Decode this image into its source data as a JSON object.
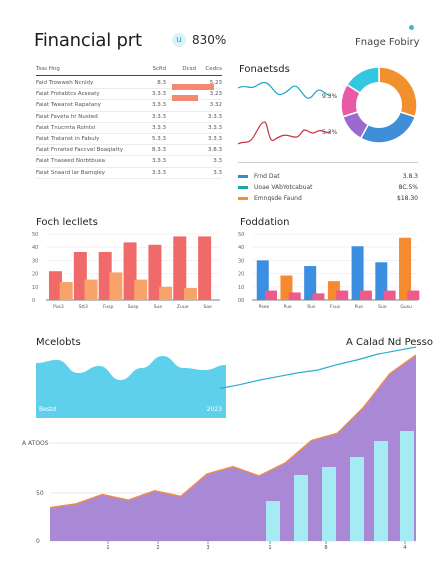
{
  "header": {
    "title": "Financial prt",
    "badge_icon": "u",
    "badge_value": "830%",
    "top_right": "Fnage Fobiry"
  },
  "table": {
    "headers": [
      "Tsss Hng",
      "Scfid",
      "Dcsd",
      "Cedcs"
    ],
    "rows": [
      {
        "name": "Faid Trowweh  Ncnldy",
        "v1": "8.3",
        "bar": 0.95,
        "v3": "5.23"
      },
      {
        "name": "Faiat Frotabtcs Acseaty",
        "v1": "3.3.3",
        "bar": 0.6,
        "v3": "3.23"
      },
      {
        "name": "Faiat Tweanst  Rapatany",
        "v1": "3.3.3",
        "bar": 0,
        "v3": "3.32"
      },
      {
        "name": "Faiat Faveta hr  Nusted",
        "v1": "3.3.3",
        "bar": 0,
        "v3": "3.3.3"
      },
      {
        "name": "Faiat Tnucmta Rolntsi",
        "v1": "3.3.3",
        "bar": 0,
        "v3": "3.3.3"
      },
      {
        "name": "Faiat Tratanst in Fabuly",
        "v1": "5.3.3",
        "bar": 0,
        "v3": "3.3.3"
      },
      {
        "name": "Faiat Fnnetsd  Faccvel  Boaqiatty",
        "v1": "8.3.3",
        "bar": 0,
        "v3": "3.8.3"
      },
      {
        "name": "Faiat Tnaseed  Norbtbuea",
        "v1": "3.3.3",
        "bar": 0,
        "v3": "3.3"
      },
      {
        "name": "Faiat Snaard lar  Bamqley",
        "v1": "3.3.3",
        "bar": 0,
        "v3": "3.3"
      }
    ]
  },
  "right_top": {
    "title": "Fonaetsds",
    "line1_label": "9.3%",
    "line2_label": "5.3%"
  },
  "legend": [
    {
      "name": "Frnd Dat",
      "value": "3.8.3",
      "color": "#2d8fd0"
    },
    {
      "name": "Uoae  VAbYotcabuat",
      "value": "8C.5%",
      "color": "#1aa7a8"
    },
    {
      "name": "Emnqsde  Faund",
      "value": "$18.30",
      "color": "#f09033"
    }
  ],
  "donut": [
    {
      "value": 30,
      "color": "#f2902e"
    },
    {
      "value": 28,
      "color": "#3f8fd8"
    },
    {
      "value": 12,
      "color": "#9b6ad0"
    },
    {
      "value": 14,
      "color": "#e85aa6"
    },
    {
      "value": 16,
      "color": "#35c6e0"
    }
  ],
  "chart_data": [
    {
      "type": "bar",
      "title": "Foch lecllets",
      "ylabels": [
        "0",
        "10",
        "20",
        "30",
        "40",
        "50"
      ],
      "categories": [
        "Pus3",
        "Stt3",
        "Fusp",
        "Sasp",
        "Sue",
        "Zuue",
        "Sae"
      ],
      "series": [
        {
          "values": [
            24,
            40,
            40,
            48,
            46,
            53,
            53
          ]
        },
        {
          "values": [
            15,
            17,
            23,
            17,
            11,
            10,
            0
          ]
        }
      ],
      "ylim": [
        0,
        55
      ]
    },
    {
      "type": "bar",
      "title": "Foddation",
      "ylabels": [
        "00",
        "10",
        "20",
        "30",
        "40",
        "50"
      ],
      "categories": [
        "Paee",
        "Pue",
        "Rus",
        "Fsus",
        "Pue",
        "Sue",
        "Gusu"
      ],
      "series": [
        {
          "values": [
            42,
            0,
            36,
            0,
            57,
            40,
            0
          ]
        },
        {
          "values": [
            0,
            26,
            0,
            20,
            0,
            0,
            66
          ]
        },
        {
          "values": [
            10,
            8,
            7,
            10,
            10,
            10,
            10
          ]
        }
      ],
      "ylim": [
        0,
        70
      ]
    },
    {
      "type": "area",
      "title": "Mcelobts",
      "left_label": "Bestd",
      "right_label": "2023",
      "values": [
        55,
        58,
        45,
        52,
        38,
        50,
        62,
        50,
        48,
        53
      ]
    },
    {
      "type": "area",
      "title": "A Calad Nd Pesso",
      "ylabel_top": "A ATOOS",
      "ylabels": [
        "0",
        "50",
        "10"
      ],
      "xlabels": [
        "1",
        "2",
        "3",
        "1",
        "8",
        "4"
      ],
      "trend": [
        10,
        18,
        28,
        36,
        44,
        50,
        62,
        72,
        84,
        92,
        100
      ],
      "area": [
        18,
        20,
        25,
        22,
        27,
        24,
        36,
        40,
        35,
        42,
        54,
        58,
        72,
        90,
        100
      ],
      "bars": [
        40,
        66,
        74,
        84,
        100,
        110
      ]
    }
  ]
}
